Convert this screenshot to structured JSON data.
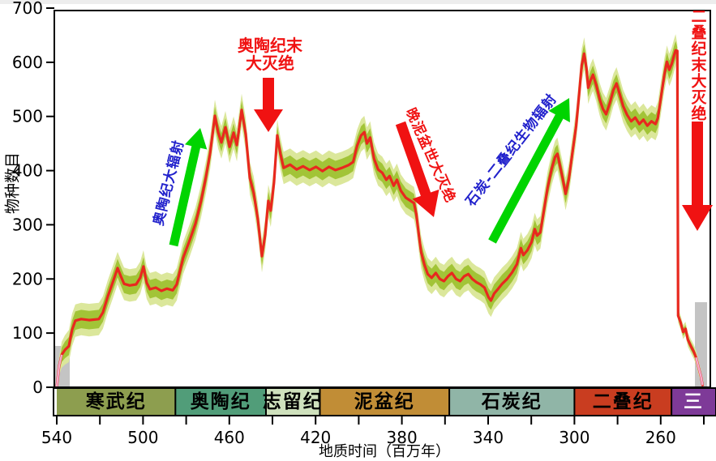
{
  "page": {
    "background": "#ffffff",
    "top_strip_color": "#ededed"
  },
  "axes": {
    "y": {
      "label": "物种数目",
      "ticks": [
        0,
        100,
        200,
        300,
        400,
        500,
        600,
        700
      ],
      "min": 0,
      "max": 700
    },
    "x": {
      "label": "地质时间（百万年）",
      "major_ticks": [
        540,
        500,
        460,
        420,
        380,
        340,
        300,
        260
      ],
      "minor_ticks": [
        520,
        480,
        440,
        400,
        360,
        320,
        280,
        240
      ],
      "left_ma": 540,
      "right_ma": 237
    }
  },
  "periods": [
    {
      "name": "寒武纪",
      "start_ma": 540,
      "end_ma": 485,
      "fill": "#8d9e4f",
      "text_color": "#000000"
    },
    {
      "name": "奥陶纪",
      "start_ma": 485,
      "end_ma": 443,
      "fill": "#519d79",
      "text_color": "#000000"
    },
    {
      "name": "志留纪",
      "start_ma": 443,
      "end_ma": 418,
      "fill": "#cfe1bd",
      "text_color": "#000000"
    },
    {
      "name": "泥盆纪",
      "start_ma": 418,
      "end_ma": 358,
      "fill": "#c18d36",
      "text_color": "#000000"
    },
    {
      "name": "石炭纪",
      "start_ma": 358,
      "end_ma": 300,
      "fill": "#90b5a7",
      "text_color": "#000000"
    },
    {
      "name": "二叠纪",
      "start_ma": 300,
      "end_ma": 255,
      "fill": "#c93d20",
      "text_color": "#000000"
    },
    {
      "name": "三",
      "start_ma": 255,
      "end_ma": 234,
      "fill": "#7e3a98",
      "text_color": "#ffffff"
    }
  ],
  "annotations": {
    "ordovician_radiation": {
      "text": "奥陶纪大辐射",
      "color": "#2222cc"
    },
    "end_ordovician_extinction": {
      "line1": "奥陶纪末",
      "line2": "大灭绝",
      "color": "#f01212"
    },
    "late_devonian_extinction": {
      "text": "晚泥盆世大灭绝",
      "color": "#f01212"
    },
    "carboniferous_permian_radiation": {
      "text": "石炭-二叠纪生物辐射",
      "color": "#2222cc"
    },
    "end_permian_extinction": {
      "text": "二叠纪末大灭绝",
      "color": "#f01212"
    }
  },
  "colors": {
    "line": "#e8281e",
    "band_inner": "#a2c437",
    "band_outer": "#dbe79b",
    "uncertainty_gray": "#c4c4c4",
    "tail_pink": "#f5aacb",
    "radiation_arrow": "#00d400",
    "extinction_arrow": "#f01212",
    "axis": "#000000"
  },
  "chart_data": {
    "type": "line",
    "title": "",
    "xlabel": "地质时间（百万年）",
    "ylabel": "物种数目",
    "x_direction": "decreasing",
    "xlim": [
      540,
      237
    ],
    "ylim": [
      0,
      700
    ],
    "grid": false,
    "events": [
      {
        "label": "奥陶纪大辐射",
        "type": "radiation",
        "interval_ma": [
          500,
          468
        ]
      },
      {
        "label": "奥陶纪末大灭绝",
        "type": "extinction",
        "at_ma": 445
      },
      {
        "label": "晚泥盆世大灭绝",
        "type": "extinction",
        "at_ma": 372
      },
      {
        "label": "石炭-二叠纪生物辐射",
        "type": "radiation",
        "interval_ma": [
          330,
          300
        ]
      },
      {
        "label": "二叠纪末大灭绝",
        "type": "extinction",
        "at_ma": 252
      }
    ],
    "series": [
      {
        "name": "物种数目",
        "color": "#e8281e",
        "points": [
          [
            540,
            1
          ],
          [
            538.9,
            39
          ],
          [
            537.7,
            60
          ],
          [
            536.2,
            69
          ],
          [
            534.4,
            76
          ],
          [
            532.9,
            106
          ],
          [
            531.4,
            123
          ],
          [
            528.7,
            126
          ],
          [
            525,
            124
          ],
          [
            520.5,
            126
          ],
          [
            518.6,
            138
          ],
          [
            516.3,
            168
          ],
          [
            514.1,
            193
          ],
          [
            511.8,
            220
          ],
          [
            510.3,
            205
          ],
          [
            508.8,
            191
          ],
          [
            506.2,
            188
          ],
          [
            503.2,
            190
          ],
          [
            501.3,
            202
          ],
          [
            499.8,
            223
          ],
          [
            498.3,
            193
          ],
          [
            496.8,
            181
          ],
          [
            494.1,
            184
          ],
          [
            491.5,
            178
          ],
          [
            488.9,
            182
          ],
          [
            486.2,
            179
          ],
          [
            484.4,
            190
          ],
          [
            481.4,
            239
          ],
          [
            478.3,
            272
          ],
          [
            475.7,
            302
          ],
          [
            473.1,
            344
          ],
          [
            470.8,
            389
          ],
          [
            468.9,
            432
          ],
          [
            466.7,
            501
          ],
          [
            465.2,
            471
          ],
          [
            463.7,
            452
          ],
          [
            461.8,
            480
          ],
          [
            459.9,
            444
          ],
          [
            458,
            470
          ],
          [
            456.5,
            447
          ],
          [
            454.3,
            512
          ],
          [
            452.4,
            468
          ],
          [
            450.5,
            386
          ],
          [
            448.7,
            359
          ],
          [
            446.8,
            311
          ],
          [
            444.9,
            242
          ],
          [
            443.4,
            281
          ],
          [
            441.9,
            344
          ],
          [
            440.8,
            326
          ],
          [
            439.3,
            378
          ],
          [
            437.8,
            465
          ],
          [
            436.3,
            431
          ],
          [
            434.8,
            405
          ],
          [
            431.8,
            411
          ],
          [
            428.8,
            402
          ],
          [
            425.8,
            408
          ],
          [
            422.8,
            401
          ],
          [
            419.8,
            407
          ],
          [
            416.8,
            399
          ],
          [
            413.8,
            407
          ],
          [
            410.8,
            401
          ],
          [
            407.8,
            405
          ],
          [
            404.8,
            410
          ],
          [
            402.6,
            416
          ],
          [
            400.7,
            446
          ],
          [
            398.9,
            465
          ],
          [
            397.4,
            471
          ],
          [
            396.2,
            450
          ],
          [
            394.7,
            461
          ],
          [
            392.9,
            422
          ],
          [
            391,
            402
          ],
          [
            389.1,
            396
          ],
          [
            387.2,
            383
          ],
          [
            385.7,
            390
          ],
          [
            383.8,
            372
          ],
          [
            382.3,
            383
          ],
          [
            380.5,
            363
          ],
          [
            378.2,
            350
          ],
          [
            375.9,
            344
          ],
          [
            374.4,
            340
          ],
          [
            373.3,
            320
          ],
          [
            372.2,
            284
          ],
          [
            371.1,
            250
          ],
          [
            369.5,
            226
          ],
          [
            368,
            209
          ],
          [
            366.2,
            202
          ],
          [
            364.3,
            211
          ],
          [
            362.4,
            200
          ],
          [
            360.5,
            196
          ],
          [
            358.6,
            205
          ],
          [
            356.8,
            211
          ],
          [
            354.9,
            200
          ],
          [
            353,
            196
          ],
          [
            351.1,
            205
          ],
          [
            349.2,
            209
          ],
          [
            347.4,
            200
          ],
          [
            345.5,
            194
          ],
          [
            343.6,
            190
          ],
          [
            341.7,
            184
          ],
          [
            339.8,
            166
          ],
          [
            338.7,
            160
          ],
          [
            337.2,
            173
          ],
          [
            335.3,
            182
          ],
          [
            333.5,
            191
          ],
          [
            331.2,
            200
          ],
          [
            328.9,
            212
          ],
          [
            326.7,
            227
          ],
          [
            324.8,
            257
          ],
          [
            323.7,
            244
          ],
          [
            321.8,
            253
          ],
          [
            319.9,
            268
          ],
          [
            318.4,
            292
          ],
          [
            317.3,
            280
          ],
          [
            315.8,
            286
          ],
          [
            314.3,
            323
          ],
          [
            312.4,
            369
          ],
          [
            310.5,
            404
          ],
          [
            309,
            425
          ],
          [
            307.9,
            431
          ],
          [
            306.8,
            411
          ],
          [
            305.3,
            383
          ],
          [
            304.1,
            357
          ],
          [
            302.6,
            384
          ],
          [
            300.8,
            437
          ],
          [
            299.2,
            482
          ],
          [
            297.7,
            546
          ],
          [
            296.6,
            595
          ],
          [
            295.5,
            616
          ],
          [
            294.4,
            588
          ],
          [
            293.6,
            553
          ],
          [
            292.5,
            567
          ],
          [
            291.4,
            577
          ],
          [
            289.9,
            558
          ],
          [
            288.3,
            532
          ],
          [
            286.8,
            514
          ],
          [
            285.3,
            504
          ],
          [
            283.5,
            526
          ],
          [
            281.9,
            549
          ],
          [
            280.5,
            561
          ],
          [
            278.9,
            540
          ],
          [
            277.4,
            519
          ],
          [
            275.6,
            503
          ],
          [
            273.7,
            491
          ],
          [
            271.8,
            498
          ],
          [
            269.9,
            486
          ],
          [
            268,
            494
          ],
          [
            266.2,
            483
          ],
          [
            264.3,
            491
          ],
          [
            262.4,
            486
          ],
          [
            261.3,
            497
          ],
          [
            259.8,
            537
          ],
          [
            258.3,
            577
          ],
          [
            257.1,
            601
          ],
          [
            256,
            586
          ],
          [
            254.9,
            597
          ],
          [
            253.8,
            613
          ],
          [
            253.1,
            622
          ],
          [
            252.3,
            621
          ],
          [
            251.9,
            132
          ],
          [
            250.8,
            120
          ],
          [
            249.6,
            102
          ],
          [
            248.5,
            108
          ],
          [
            247.4,
            88
          ],
          [
            245.9,
            75
          ],
          [
            244.7,
            66
          ],
          [
            243.6,
            55
          ],
          [
            242.5,
            37
          ],
          [
            241.4,
            21
          ],
          [
            240.6,
            4
          ]
        ]
      }
    ]
  }
}
